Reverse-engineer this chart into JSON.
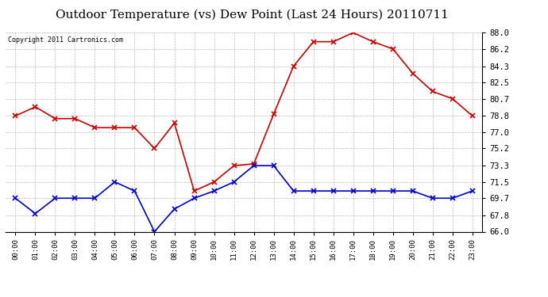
{
  "title": "Outdoor Temperature (vs) Dew Point (Last 24 Hours) 20110711",
  "copyright_text": "Copyright 2011 Cartronics.com",
  "x_labels": [
    "00:00",
    "01:00",
    "02:00",
    "03:00",
    "04:00",
    "05:00",
    "06:00",
    "07:00",
    "08:00",
    "09:00",
    "10:00",
    "11:00",
    "12:00",
    "13:00",
    "14:00",
    "15:00",
    "16:00",
    "17:00",
    "18:00",
    "19:00",
    "20:00",
    "21:00",
    "22:00",
    "23:00"
  ],
  "temp_data": [
    78.8,
    79.8,
    78.5,
    78.5,
    77.5,
    77.5,
    77.5,
    75.2,
    78.0,
    70.5,
    71.5,
    73.3,
    73.5,
    79.0,
    84.3,
    87.0,
    87.0,
    88.0,
    87.0,
    86.2,
    83.5,
    81.5,
    80.7,
    78.8
  ],
  "dew_data": [
    69.7,
    68.0,
    69.7,
    69.7,
    69.7,
    71.5,
    70.5,
    66.0,
    68.5,
    69.7,
    70.5,
    71.5,
    73.3,
    73.3,
    70.5,
    70.5,
    70.5,
    70.5,
    70.5,
    70.5,
    70.5,
    69.7,
    69.7,
    70.5
  ],
  "temp_color": "#cc0000",
  "dew_color": "#0000cc",
  "marker": "x",
  "markersize": 5,
  "markeredgewidth": 1.2,
  "linewidth": 1.2,
  "ylim": [
    66.0,
    88.0
  ],
  "yticks": [
    66.0,
    67.8,
    69.7,
    71.5,
    73.3,
    75.2,
    77.0,
    78.8,
    80.7,
    82.5,
    84.3,
    86.2,
    88.0
  ],
  "bg_color": "#ffffff",
  "plot_bg_color": "#ffffff",
  "grid_color": "#bbbbbb",
  "title_fontsize": 11,
  "copyright_fontsize": 6,
  "xtick_fontsize": 6.5,
  "ytick_fontsize": 7.5
}
